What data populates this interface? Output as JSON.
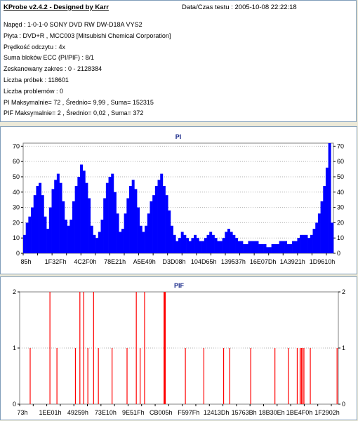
{
  "header": {
    "app_title": "KProbe v2.4.2 - Designed by Karr",
    "date_text": "Data/Czas testu : 2005-10-08 22:22:18"
  },
  "info_lines": [
    "Napęd : 1-0-1-0 SONY     DVD RW DW-D18A    VYS2",
    "Płyta : DVD+R , MCC003 [Mitsubishi Chemical Corporation]",
    "Prędkość odczytu : 4x",
    "Suma bloków ECC (PI/PIF) : 8/1",
    "Zeskanowany zakres : 0 - 2128384",
    "Liczba próbek : 118601",
    "Liczba problemów : 0",
    "PI Maksymalnie= 72 , Średnio= 9,99 , Suma= 152315",
    "PIF Maksymalnie= 2 , Średnio= 0,02 , Suma= 372"
  ],
  "chart_data": [
    {
      "type": "area",
      "title": "PI",
      "color": "#0000ff",
      "ylim": [
        0,
        72
      ],
      "yticks": [
        0,
        10,
        20,
        30,
        40,
        50,
        60,
        70
      ],
      "grid": true,
      "x_tick_labels": [
        "85h",
        "1F32Fh",
        "4C2F0h",
        "78E21h",
        "A5E49h",
        "D3D08h",
        "104D65h",
        "139537h",
        "16E07Dh",
        "1A3921h",
        "1D9610h"
      ],
      "values": [
        12,
        20,
        24,
        30,
        38,
        44,
        46,
        38,
        24,
        16,
        30,
        42,
        48,
        52,
        46,
        34,
        22,
        18,
        22,
        34,
        44,
        50,
        58,
        54,
        46,
        36,
        18,
        12,
        10,
        14,
        22,
        36,
        46,
        50,
        52,
        40,
        26,
        14,
        16,
        26,
        36,
        44,
        48,
        42,
        30,
        18,
        14,
        18,
        26,
        34,
        38,
        44,
        48,
        52,
        44,
        38,
        28,
        18,
        12,
        8,
        10,
        14,
        12,
        10,
        8,
        10,
        12,
        10,
        8,
        8,
        10,
        12,
        14,
        12,
        10,
        8,
        8,
        10,
        14,
        16,
        14,
        12,
        10,
        8,
        8,
        6,
        6,
        8,
        8,
        8,
        8,
        6,
        6,
        6,
        4,
        4,
        6,
        6,
        6,
        8,
        8,
        8,
        6,
        6,
        8,
        8,
        10,
        12,
        12,
        12,
        10,
        12,
        16,
        20,
        26,
        34,
        44,
        56,
        72,
        20
      ]
    },
    {
      "type": "bar",
      "title": "PIF",
      "color": "#ff0000",
      "ylim": [
        0,
        2
      ],
      "yticks": [
        0,
        1,
        2
      ],
      "grid": true,
      "x_tick_labels": [
        "73h",
        "1EE01h",
        "49259h",
        "73E10h",
        "9E51Fh",
        "CB005h",
        "F597Fh",
        "12413Dh",
        "15763Bh",
        "18B30Eh",
        "1BE4F0h",
        "1F2902h"
      ],
      "spikes": [
        {
          "pos": 0.033,
          "value": 1
        },
        {
          "pos": 0.095,
          "value": 2
        },
        {
          "pos": 0.117,
          "value": 1
        },
        {
          "pos": 0.175,
          "value": 1
        },
        {
          "pos": 0.189,
          "value": 2
        },
        {
          "pos": 0.201,
          "value": 2
        },
        {
          "pos": 0.214,
          "value": 1
        },
        {
          "pos": 0.232,
          "value": 2
        },
        {
          "pos": 0.247,
          "value": 1
        },
        {
          "pos": 0.29,
          "value": 1
        },
        {
          "pos": 0.337,
          "value": 1
        },
        {
          "pos": 0.366,
          "value": 2
        },
        {
          "pos": 0.378,
          "value": 1
        },
        {
          "pos": 0.392,
          "value": 2
        },
        {
          "pos": 0.453,
          "value": 2
        },
        {
          "pos": 0.455,
          "value": 2
        },
        {
          "pos": 0.457,
          "value": 2
        },
        {
          "pos": 0.52,
          "value": 1
        },
        {
          "pos": 0.578,
          "value": 1
        },
        {
          "pos": 0.64,
          "value": 1
        },
        {
          "pos": 0.659,
          "value": 1
        },
        {
          "pos": 0.725,
          "value": 1
        },
        {
          "pos": 0.801,
          "value": 1
        },
        {
          "pos": 0.843,
          "value": 1
        },
        {
          "pos": 0.871,
          "value": 1
        },
        {
          "pos": 0.88,
          "value": 1
        },
        {
          "pos": 0.884,
          "value": 1
        },
        {
          "pos": 0.888,
          "value": 1
        },
        {
          "pos": 0.892,
          "value": 1
        },
        {
          "pos": 0.912,
          "value": 1
        },
        {
          "pos": 0.996,
          "value": 1
        }
      ]
    }
  ]
}
